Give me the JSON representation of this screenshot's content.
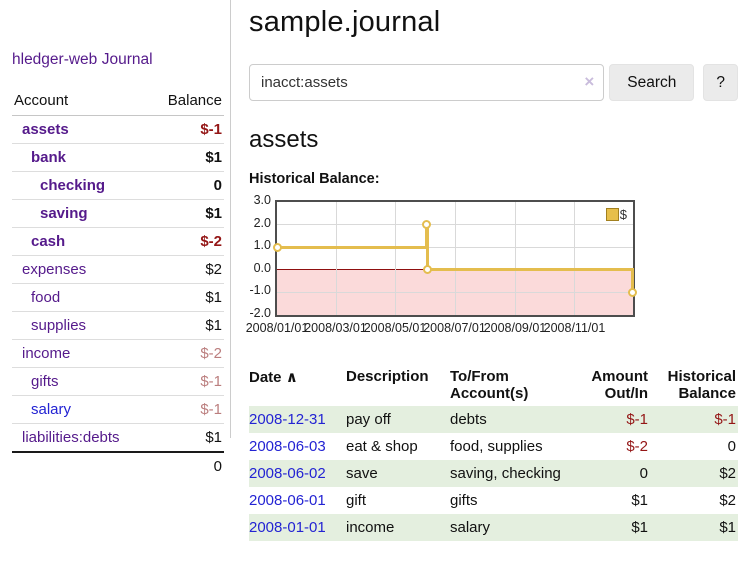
{
  "app": {
    "title": "hledger-web",
    "nav_journal": "Journal"
  },
  "sidebar": {
    "headers": {
      "account": "Account",
      "balance": "Balance"
    },
    "accounts": [
      {
        "name": "assets",
        "balance": "$-1",
        "level": 1,
        "bold": true,
        "neg": "strong"
      },
      {
        "name": "bank",
        "balance": "$1",
        "level": 2,
        "bold": true
      },
      {
        "name": "checking",
        "balance": "0",
        "level": 3,
        "bold": true
      },
      {
        "name": "saving",
        "balance": "$1",
        "level": 3,
        "bold": true
      },
      {
        "name": "cash",
        "balance": "$-2",
        "level": 2,
        "bold": true,
        "neg": "strong"
      },
      {
        "name": "expenses",
        "balance": "$2",
        "level": 1
      },
      {
        "name": "food",
        "balance": "$1",
        "level": 2
      },
      {
        "name": "supplies",
        "balance": "$1",
        "level": 2
      },
      {
        "name": "income",
        "balance": "$-2",
        "level": 1,
        "neg": "muted"
      },
      {
        "name": "gifts",
        "balance": "$-1",
        "level": 2,
        "neg": "muted"
      },
      {
        "name": "salary",
        "balance": "$-1",
        "level": 2,
        "neg": "muted",
        "link": "blue"
      },
      {
        "name": "liabilities:debts",
        "balance": "$1",
        "level": 1
      }
    ],
    "total": "0"
  },
  "main": {
    "title": "sample.journal",
    "search": {
      "value": "inacct:assets",
      "clear_icon": "×",
      "button": "Search",
      "help": "?"
    },
    "account_heading": "assets",
    "chart_label": "Historical Balance:"
  },
  "chart_data": {
    "type": "line",
    "title": "Historical Balance",
    "step": true,
    "xlim": [
      "2008/01/01",
      "2008/12/31"
    ],
    "ylim": [
      -2.0,
      3.0
    ],
    "yticks": [
      3.0,
      2.0,
      1.0,
      0.0,
      -1.0,
      -2.0
    ],
    "xticks": [
      "2008/01/01",
      "2008/03/01",
      "2008/05/01",
      "2008/07/01",
      "2008/09/01",
      "2008/11/01"
    ],
    "series": [
      {
        "name": "$",
        "color": "#e4bd4e",
        "points": [
          [
            "2008/01/01",
            1.0
          ],
          [
            "2008/06/02",
            2.0
          ],
          [
            "2008/06/03",
            0.0
          ],
          [
            "2008/12/31",
            -1.0
          ]
        ]
      }
    ],
    "legend": "$",
    "legend_position": "top-right",
    "grid": true,
    "negative_region_color": "#fbdada",
    "zero_line_color": "#8f0f0f"
  },
  "register": {
    "headers": {
      "date": "Date",
      "sort_icon": "∧",
      "description": "Description",
      "accounts": "To/From Account(s)",
      "amount": "Amount Out/In",
      "balance": "Historical Balance"
    },
    "rows": [
      {
        "date": "2008-12-31",
        "description": "pay off",
        "accounts": "debts",
        "amount": "$-1",
        "balance": "$-1"
      },
      {
        "date": "2008-06-03",
        "description": "eat & shop",
        "accounts": "food, supplies",
        "amount": "$-2",
        "balance": "0"
      },
      {
        "date": "2008-06-02",
        "description": "save",
        "accounts": "saving, checking",
        "amount": "0",
        "balance": "$2"
      },
      {
        "date": "2008-06-01",
        "description": "gift",
        "accounts": "gifts",
        "amount": "$1",
        "balance": "$2"
      },
      {
        "date": "2008-01-01",
        "description": "income",
        "accounts": "salary",
        "amount": "$1",
        "balance": "$1"
      }
    ]
  }
}
